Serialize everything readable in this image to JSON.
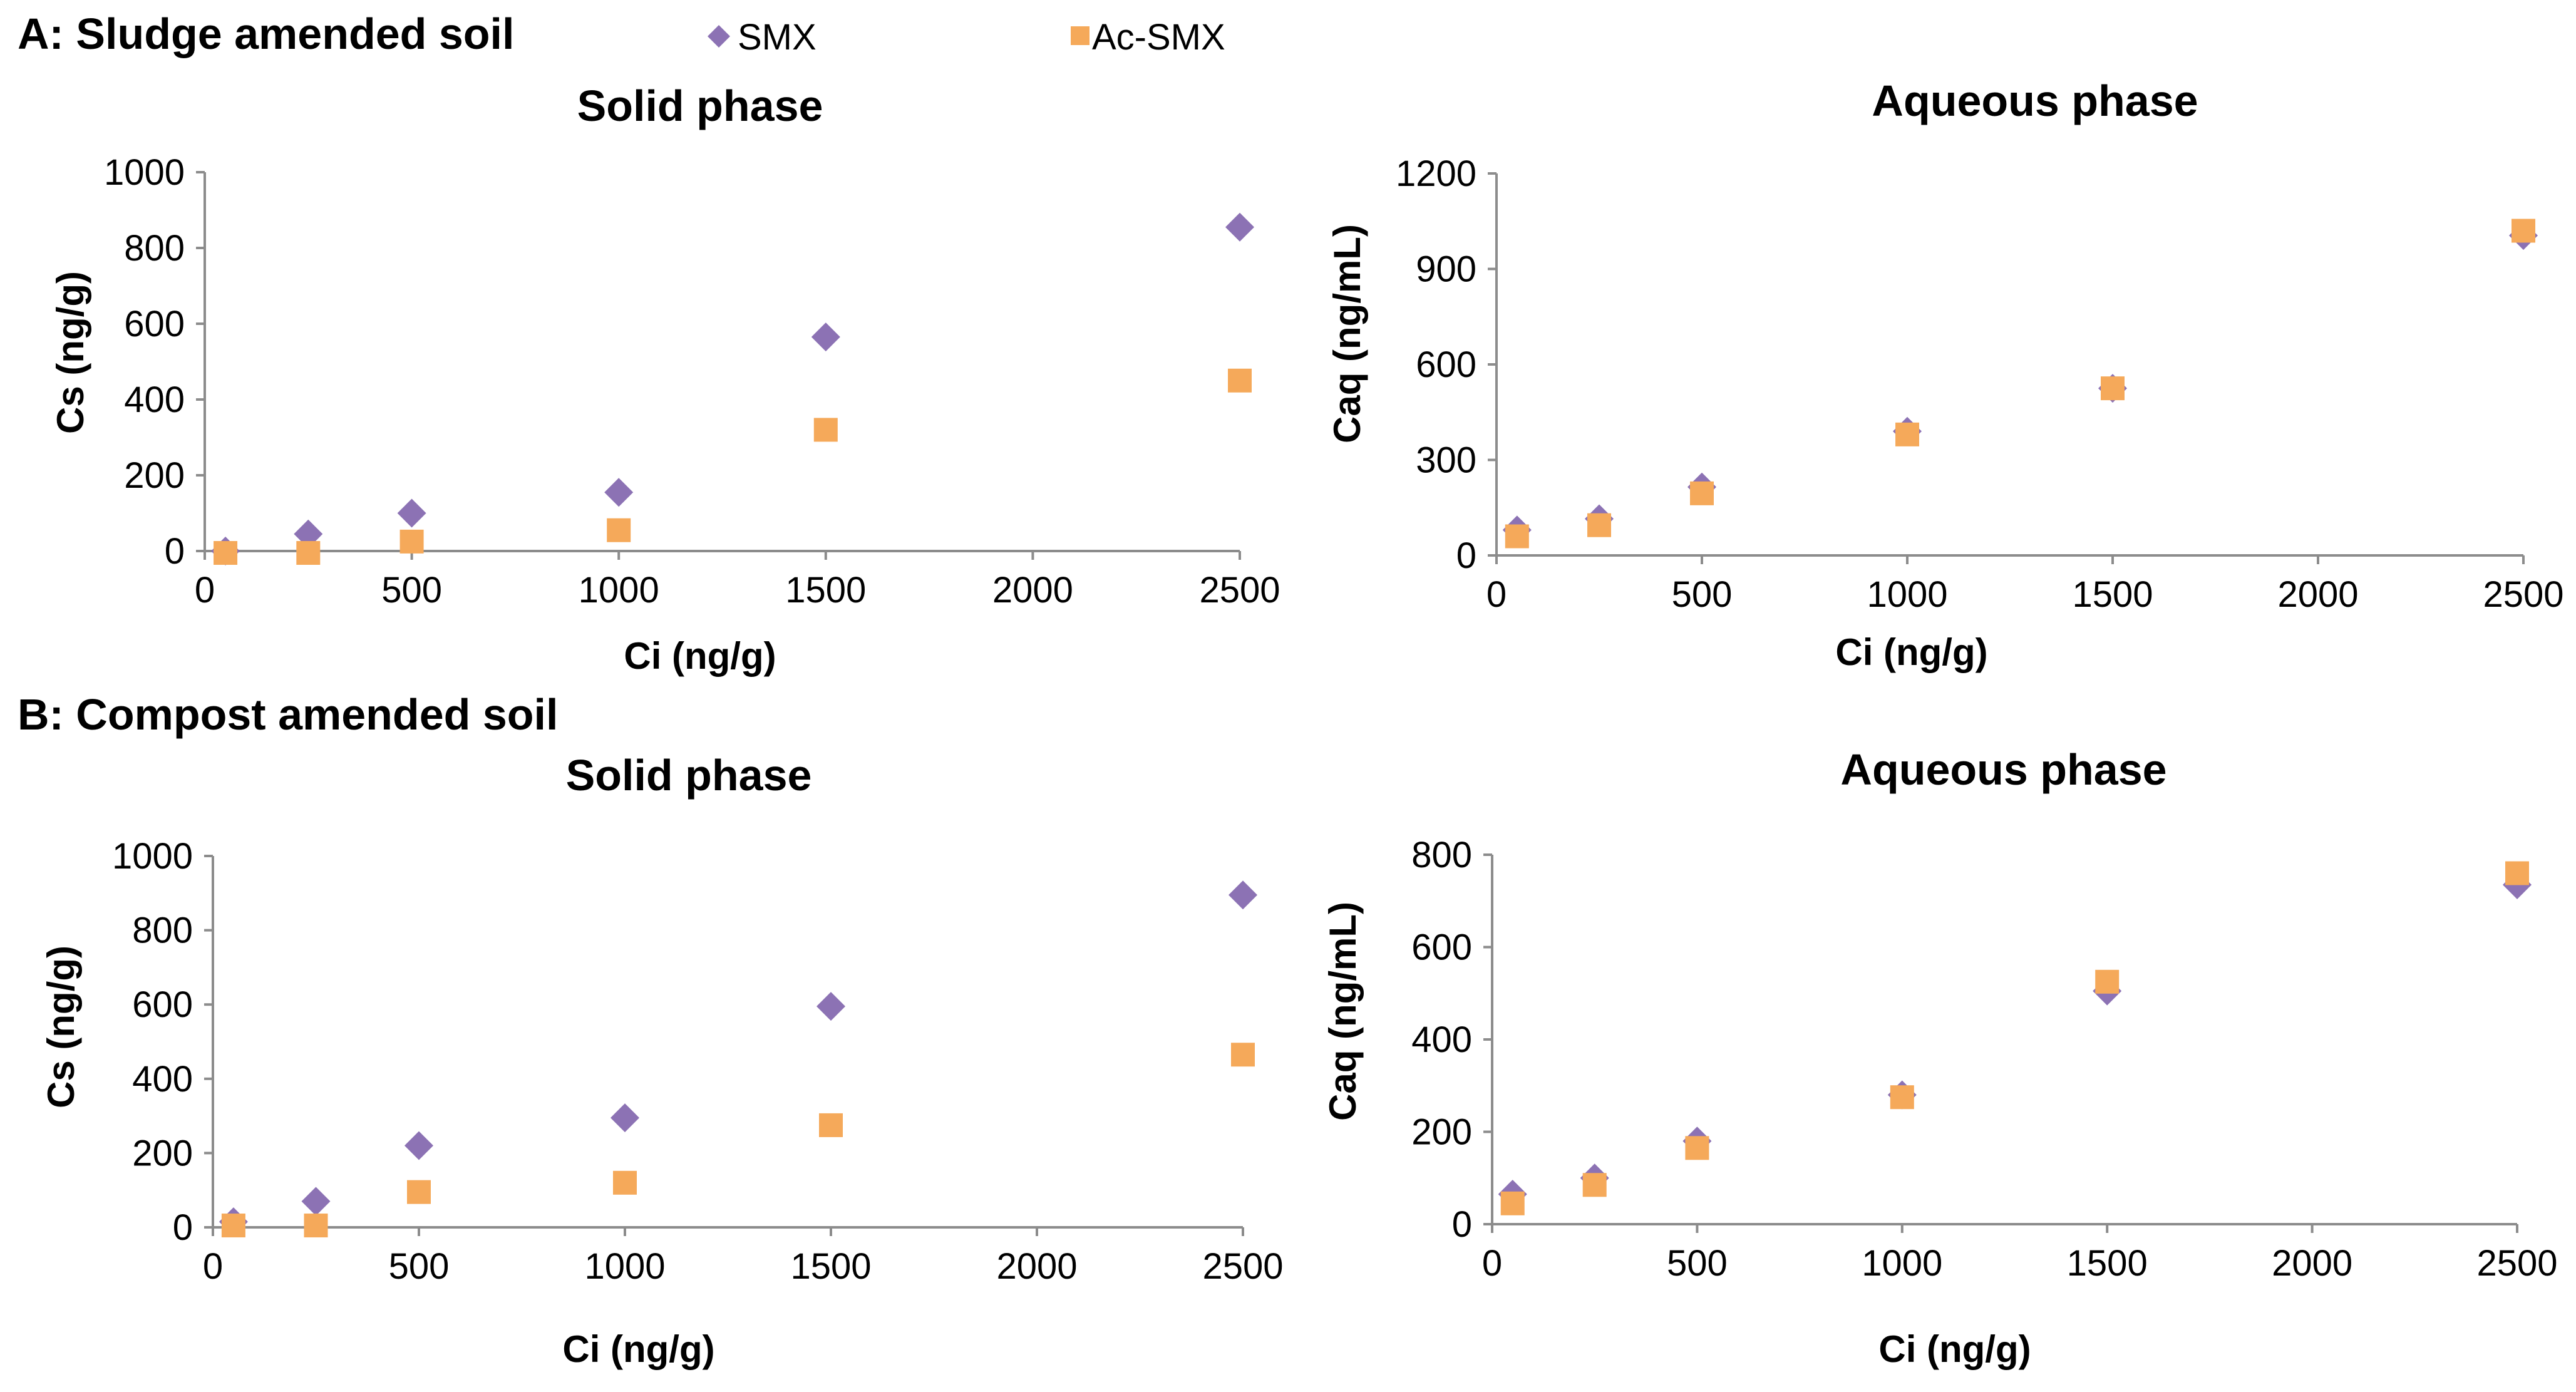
{
  "panels": [
    {
      "label": "A: Sludge amended soil"
    },
    {
      "label": "B: Compost amended soil"
    }
  ],
  "legend": [
    {
      "name": "SMX",
      "marker": "diamond",
      "color": "#8c72b4"
    },
    {
      "name": "Ac-SMX",
      "marker": "square",
      "color": "#f5a95a"
    }
  ],
  "chart_data": [
    {
      "type": "scatter",
      "title": "Solid phase",
      "xlabel": "Ci (ng/g)",
      "ylabel": "Cs (ng/g)",
      "xlim": [
        0,
        2500
      ],
      "ylim": [
        0,
        1000
      ],
      "xticks": [
        0,
        500,
        1000,
        1500,
        2000,
        2500
      ],
      "yticks": [
        0,
        200,
        400,
        600,
        800,
        1000
      ],
      "series": [
        {
          "name": "SMX",
          "x": [
            50,
            250,
            500,
            1000,
            1500,
            2500
          ],
          "y": [
            0,
            45,
            100,
            155,
            565,
            855
          ]
        },
        {
          "name": "Ac-SMX",
          "x": [
            50,
            250,
            500,
            1000,
            1500,
            2500
          ],
          "y": [
            -5,
            -5,
            25,
            55,
            320,
            450
          ]
        }
      ]
    },
    {
      "type": "scatter",
      "title": "Aqueous phase",
      "xlabel": "Ci (ng/g)",
      "ylabel": "Caq (ng/mL)",
      "xlim": [
        0,
        2500
      ],
      "ylim": [
        0,
        1200
      ],
      "xticks": [
        0,
        500,
        1000,
        1500,
        2000,
        2500
      ],
      "yticks": [
        0,
        300,
        600,
        900,
        1200
      ],
      "series": [
        {
          "name": "SMX",
          "x": [
            50,
            250,
            500,
            1000,
            1500,
            2500
          ],
          "y": [
            80,
            115,
            215,
            390,
            525,
            1005
          ]
        },
        {
          "name": "Ac-SMX",
          "x": [
            50,
            250,
            500,
            1000,
            1500,
            2500
          ],
          "y": [
            60,
            95,
            195,
            380,
            525,
            1020
          ]
        }
      ]
    },
    {
      "type": "scatter",
      "title": "Solid phase",
      "xlabel": "Ci (ng/g)",
      "ylabel": "Cs (ng/g)",
      "xlim": [
        0,
        2500
      ],
      "ylim": [
        0,
        1000
      ],
      "xticks": [
        0,
        500,
        1000,
        1500,
        2000,
        2500
      ],
      "yticks": [
        0,
        200,
        400,
        600,
        800,
        1000
      ],
      "series": [
        {
          "name": "SMX",
          "x": [
            50,
            250,
            500,
            1000,
            1500,
            2500
          ],
          "y": [
            15,
            70,
            220,
            295,
            595,
            895
          ]
        },
        {
          "name": "Ac-SMX",
          "x": [
            50,
            250,
            500,
            1000,
            1500,
            2500
          ],
          "y": [
            5,
            5,
            95,
            120,
            275,
            465
          ]
        }
      ]
    },
    {
      "type": "scatter",
      "title": "Aqueous phase",
      "xlabel": "Ci (ng/g)",
      "ylabel": "Caq (ng/mL)",
      "xlim": [
        0,
        2500
      ],
      "ylim": [
        0,
        800
      ],
      "xticks": [
        0,
        500,
        1000,
        1500,
        2000,
        2500
      ],
      "yticks": [
        0,
        200,
        400,
        600,
        800
      ],
      "series": [
        {
          "name": "SMX",
          "x": [
            50,
            250,
            500,
            1000,
            1500,
            2500
          ],
          "y": [
            65,
            100,
            180,
            280,
            505,
            735
          ]
        },
        {
          "name": "Ac-SMX",
          "x": [
            50,
            250,
            500,
            1000,
            1500,
            2500
          ],
          "y": [
            45,
            85,
            165,
            275,
            525,
            760
          ]
        }
      ]
    }
  ]
}
